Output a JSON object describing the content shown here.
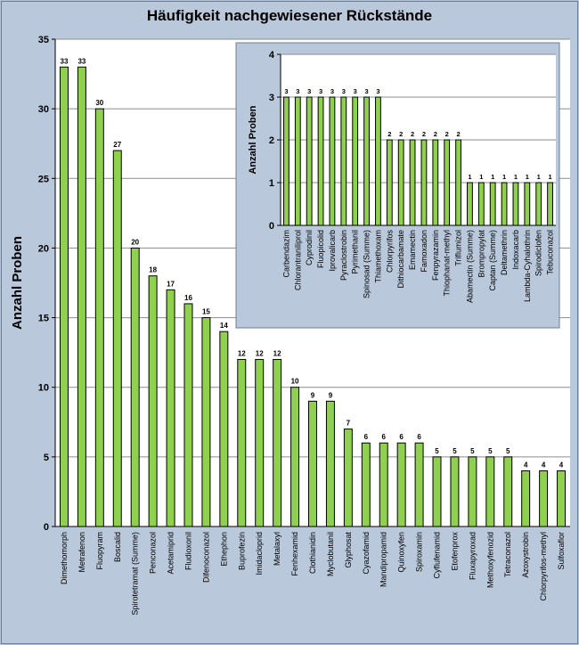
{
  "chart_data": [
    {
      "type": "bar",
      "title": "Häufigkeit nachgewiesener Rückstände",
      "xlabel": "",
      "ylabel": "Anzahl Proben",
      "ylim": [
        0,
        35
      ],
      "yticks": [
        0,
        5,
        10,
        15,
        20,
        25,
        30,
        35
      ],
      "grid": true,
      "categories": [
        "Dimethomorph",
        "Metrafenon",
        "Fluopyram",
        "Boscalid",
        "Spirotetramat (Summe)",
        "Penconazol",
        "Acetamiprid",
        "Fludioxonil",
        "Difenoconazol",
        "Ethephon",
        "Buprofezin",
        "Imidacloprid",
        "Metalaxyl",
        "Fenhexamid",
        "Clothianidin",
        "Myclobutanil",
        "Glyphosat",
        "Cyazofamid",
        "Mandipropamid",
        "Quinoxyfen",
        "Spiroxamin",
        "Cyflufenamid",
        "Etofenprox",
        "Fluxapyroxad",
        "Methoxyfenozid",
        "Tetraconazol",
        "Azoxystrobin",
        "Chlorpyrifos-methyl",
        "Sulfoxaflor"
      ],
      "values": [
        33,
        33,
        30,
        27,
        20,
        18,
        17,
        16,
        15,
        14,
        12,
        12,
        12,
        10,
        9,
        9,
        7,
        6,
        6,
        6,
        6,
        5,
        5,
        5,
        5,
        5,
        4,
        4,
        4
      ],
      "bar_color": "#8fd14f"
    },
    {
      "type": "bar",
      "title": "",
      "xlabel": "",
      "ylabel": "Anzahl Proben",
      "ylim": [
        0,
        4
      ],
      "yticks": [
        0,
        1,
        2,
        3,
        4
      ],
      "grid": true,
      "categories": [
        "Carbendazim",
        "Chlorantraniliprol",
        "Cyprodinil",
        "Fluopicolid",
        "Iprovalicarb",
        "Pyraclostrobin",
        "Pyrimethanil",
        "Spinosad (Summe)",
        "Thiamethoxam",
        "Chlorpyrifos",
        "Dithiocarbamate",
        "Emamectin",
        "Famoxadon",
        "Fenpyrazamin",
        "Thiophanat-methyl",
        "Triflumizol",
        "Abamectin (Summe)",
        "Brompropylat",
        "Captan (Summe)",
        "Deltamethrin",
        "Indoxacarb",
        "Lambda-Cyhalothrin",
        "Spirodiclofen",
        "Tebuconazol"
      ],
      "values": [
        3,
        3,
        3,
        3,
        3,
        3,
        3,
        3,
        3,
        2,
        2,
        2,
        2,
        2,
        2,
        2,
        1,
        1,
        1,
        1,
        1,
        1,
        1,
        1
      ],
      "bar_color": "#8fd14f"
    }
  ]
}
